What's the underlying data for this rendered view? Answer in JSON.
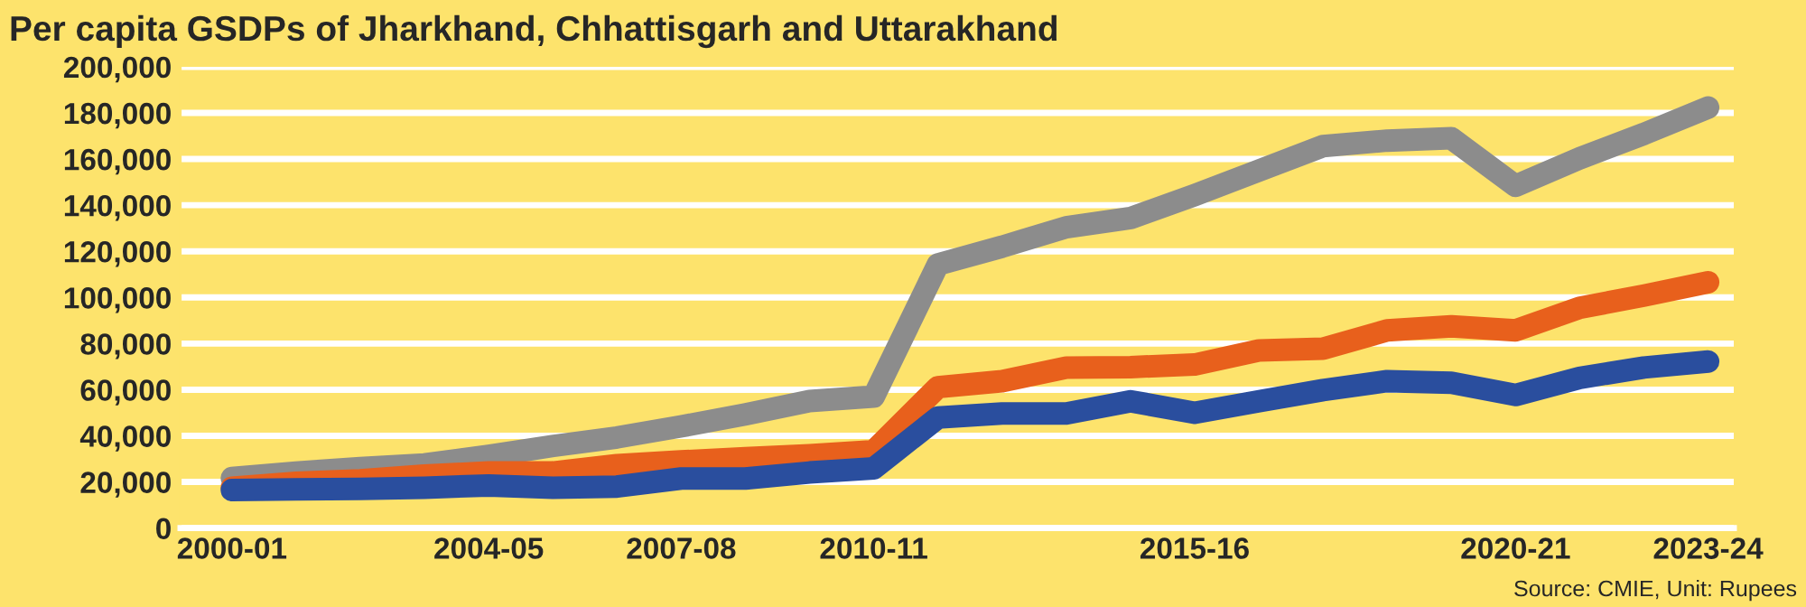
{
  "chart_data": {
    "type": "line",
    "title": "Per capita GSDPs of Jharkhand, Chhattisgarh and Uttarakhand",
    "categories": [
      "2000-01",
      null,
      null,
      null,
      "2004-05",
      null,
      null,
      "2007-08",
      null,
      null,
      "2010-11",
      null,
      null,
      null,
      null,
      "2015-16",
      null,
      null,
      null,
      null,
      "2020-21",
      null,
      null,
      "2023-24"
    ],
    "series": [
      {
        "color": "#8c8c8c",
        "values": [
          21700,
          24100,
          26000,
          27600,
          31300,
          35600,
          39300,
          44100,
          49300,
          55100,
          57000,
          114300,
          122000,
          130400,
          134400,
          144400,
          155000,
          165600,
          168000,
          169000,
          148400,
          160300,
          170900,
          182300
        ]
      },
      {
        "color": "#e8601c",
        "values": [
          17500,
          19600,
          20700,
          22800,
          24100,
          24100,
          27300,
          28900,
          30300,
          31600,
          33400,
          61100,
          63700,
          69600,
          69800,
          70900,
          77000,
          77800,
          85700,
          87500,
          85700,
          95500,
          100800,
          106600
        ]
      },
      {
        "color": "#2a4e9e",
        "values": [
          16500,
          16800,
          17000,
          17500,
          18500,
          17500,
          18000,
          21500,
          21500,
          24100,
          25900,
          47900,
          49700,
          49700,
          55000,
          50000,
          55000,
          59800,
          63700,
          63000,
          57700,
          65100,
          69600,
          72200
        ]
      }
    ],
    "ylim": [
      0,
      200000
    ],
    "yticks": [
      0,
      {
        "value": 20000,
        "label": "20,000"
      },
      {
        "value": 40000,
        "label": "40,000"
      },
      {
        "value": 60000,
        "label": "60,000"
      },
      {
        "value": 80000,
        "label": "80,000"
      },
      {
        "value": 100000,
        "label": "100,000"
      },
      {
        "value": 120000,
        "label": "120,000"
      },
      {
        "value": 140000,
        "label": "140,000"
      },
      {
        "value": 160000,
        "label": "160,000"
      },
      {
        "value": 180000,
        "label": "180,000"
      },
      {
        "value": 200000,
        "label": "200,000"
      }
    ],
    "grid": "y",
    "line_style": "solid",
    "marker": "none",
    "annotations": [
      "Source: CMIE, Unit: Rupees"
    ]
  }
}
